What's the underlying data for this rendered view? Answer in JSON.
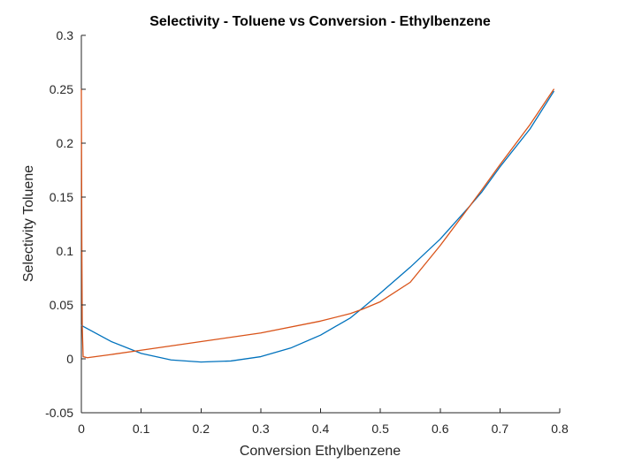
{
  "chart_data": {
    "type": "line",
    "title": "Selectivity - Toluene vs Conversion - Ethylbenzene",
    "xlabel": "Conversion Ethylbenzene",
    "ylabel": "Selectivity Toluene",
    "xlim": [
      0,
      0.8
    ],
    "ylim": [
      -0.05,
      0.3
    ],
    "xticks": [
      0,
      0.1,
      0.2,
      0.3,
      0.4,
      0.5,
      0.6,
      0.7,
      0.8
    ],
    "xtick_labels": [
      "0",
      "0.1",
      "0.2",
      "0.3",
      "0.4",
      "0.5",
      "0.6",
      "0.7",
      "0.8"
    ],
    "yticks": [
      -0.05,
      0,
      0.05,
      0.1,
      0.15,
      0.2,
      0.25,
      0.3
    ],
    "ytick_labels": [
      "-0.05",
      "0",
      "0.05",
      "0.1",
      "0.15",
      "0.2",
      "0.25",
      "0.3"
    ],
    "grid": false,
    "legend": "none",
    "series": [
      {
        "color": "#0072BD",
        "x": [
          0,
          0.05,
          0.1,
          0.15,
          0.2,
          0.25,
          0.3,
          0.35,
          0.4,
          0.45,
          0.47,
          0.5,
          0.55,
          0.6,
          0.65,
          0.67,
          0.7,
          0.75,
          0.79
        ],
        "y": [
          0.031,
          0.016,
          0.005,
          -0.001,
          -0.003,
          -0.002,
          0.002,
          0.01,
          0.022,
          0.038,
          0.047,
          0.061,
          0.085,
          0.111,
          0.142,
          0.155,
          0.178,
          0.213,
          0.248
        ]
      },
      {
        "color": "#D95319",
        "x": [
          0,
          0.0008,
          0.0015,
          0.003,
          0.01,
          0.05,
          0.1,
          0.2,
          0.3,
          0.4,
          0.45,
          0.47,
          0.5,
          0.55,
          0.6,
          0.65,
          0.67,
          0.7,
          0.75,
          0.79
        ],
        "y": [
          0.25,
          0.11,
          0.03,
          0.002,
          0.001,
          0.004,
          0.008,
          0.016,
          0.024,
          0.035,
          0.042,
          0.046,
          0.053,
          0.071,
          0.105,
          0.142,
          0.157,
          0.18,
          0.217,
          0.25
        ]
      }
    ]
  }
}
